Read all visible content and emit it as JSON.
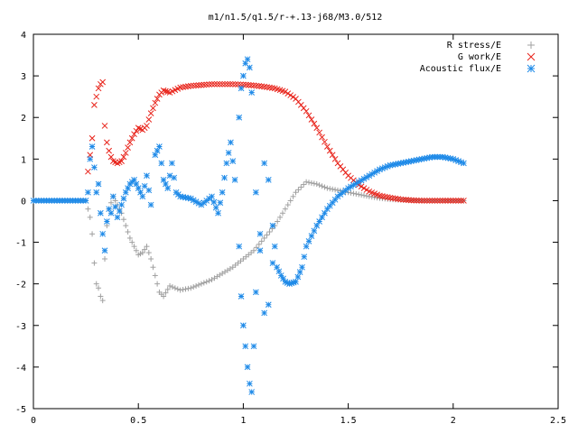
{
  "chart_data": {
    "type": "scatter",
    "title": "m1/n1.5/q1.5/r-+.13-j68/M3.0/512",
    "xlabel": "",
    "ylabel": "",
    "xlim": [
      0,
      2.5
    ],
    "ylim": [
      -5,
      4
    ],
    "x_ticks": [
      "0",
      "0.5",
      "1",
      "1.5",
      "2",
      "2.5"
    ],
    "y_ticks": [
      "-5",
      "-4",
      "-3",
      "-2",
      "-1",
      "0",
      "1",
      "2",
      "3",
      "4"
    ],
    "legend_position": "top-right",
    "grid": false,
    "series": [
      {
        "name": "R stress/E",
        "color": "#a0a0a0",
        "marker": "plus",
        "points": [
          [
            0.0,
            0
          ],
          [
            0.05,
            0
          ],
          [
            0.1,
            0
          ],
          [
            0.15,
            0
          ],
          [
            0.2,
            0
          ],
          [
            0.25,
            0
          ],
          [
            0.27,
            -0.4
          ],
          [
            0.28,
            -0.8
          ],
          [
            0.29,
            -1.5
          ],
          [
            0.3,
            -2.0
          ],
          [
            0.31,
            -2.1
          ],
          [
            0.32,
            -2.3
          ],
          [
            0.33,
            -2.4
          ],
          [
            0.34,
            -1.4
          ],
          [
            0.35,
            -0.6
          ],
          [
            0.36,
            -0.2
          ],
          [
            0.38,
            0.1
          ],
          [
            0.4,
            -0.1
          ],
          [
            0.42,
            -0.3
          ],
          [
            0.44,
            -0.6
          ],
          [
            0.46,
            -0.9
          ],
          [
            0.48,
            -1.1
          ],
          [
            0.5,
            -1.3
          ],
          [
            0.52,
            -1.25
          ],
          [
            0.54,
            -1.1
          ],
          [
            0.56,
            -1.4
          ],
          [
            0.58,
            -1.8
          ],
          [
            0.6,
            -2.2
          ],
          [
            0.62,
            -2.3
          ],
          [
            0.65,
            -2.05
          ],
          [
            0.7,
            -2.15
          ],
          [
            0.75,
            -2.1
          ],
          [
            0.8,
            -2.0
          ],
          [
            0.85,
            -1.9
          ],
          [
            0.9,
            -1.75
          ],
          [
            0.95,
            -1.6
          ],
          [
            1.0,
            -1.4
          ],
          [
            1.05,
            -1.2
          ],
          [
            1.1,
            -0.9
          ],
          [
            1.15,
            -0.6
          ],
          [
            1.2,
            -0.2
          ],
          [
            1.25,
            0.2
          ],
          [
            1.3,
            0.45
          ],
          [
            1.35,
            0.4
          ],
          [
            1.4,
            0.3
          ],
          [
            1.45,
            0.25
          ],
          [
            1.5,
            0.2
          ],
          [
            1.55,
            0.15
          ],
          [
            1.6,
            0.1
          ],
          [
            1.65,
            0.06
          ],
          [
            1.7,
            0.03
          ],
          [
            1.75,
            0.02
          ],
          [
            1.8,
            0.01
          ],
          [
            1.85,
            0.0
          ],
          [
            1.9,
            0.0
          ],
          [
            1.95,
            0.0
          ],
          [
            2.0,
            0.0
          ],
          [
            2.05,
            0.0
          ]
        ]
      },
      {
        "name": "G work/E",
        "color": "#e8231a",
        "marker": "cross",
        "points": [
          [
            0.26,
            0.7
          ],
          [
            0.28,
            1.5
          ],
          [
            0.29,
            2.3
          ],
          [
            0.3,
            2.5
          ],
          [
            0.31,
            2.7
          ],
          [
            0.32,
            2.8
          ],
          [
            0.33,
            2.85
          ],
          [
            0.34,
            1.8
          ],
          [
            0.35,
            1.4
          ],
          [
            0.36,
            1.2
          ],
          [
            0.37,
            1.05
          ],
          [
            0.38,
            0.95
          ],
          [
            0.4,
            0.9
          ],
          [
            0.42,
            0.95
          ],
          [
            0.44,
            1.15
          ],
          [
            0.46,
            1.4
          ],
          [
            0.48,
            1.6
          ],
          [
            0.5,
            1.75
          ],
          [
            0.52,
            1.7
          ],
          [
            0.54,
            1.8
          ],
          [
            0.56,
            2.1
          ],
          [
            0.58,
            2.35
          ],
          [
            0.6,
            2.55
          ],
          [
            0.62,
            2.65
          ],
          [
            0.65,
            2.6
          ],
          [
            0.7,
            2.72
          ],
          [
            0.75,
            2.76
          ],
          [
            0.8,
            2.78
          ],
          [
            0.85,
            2.8
          ],
          [
            0.9,
            2.8
          ],
          [
            0.95,
            2.8
          ],
          [
            1.0,
            2.79
          ],
          [
            1.05,
            2.77
          ],
          [
            1.1,
            2.74
          ],
          [
            1.15,
            2.7
          ],
          [
            1.2,
            2.62
          ],
          [
            1.25,
            2.45
          ],
          [
            1.3,
            2.15
          ],
          [
            1.35,
            1.75
          ],
          [
            1.4,
            1.3
          ],
          [
            1.45,
            0.9
          ],
          [
            1.5,
            0.6
          ],
          [
            1.55,
            0.38
          ],
          [
            1.6,
            0.22
          ],
          [
            1.65,
            0.12
          ],
          [
            1.7,
            0.07
          ],
          [
            1.75,
            0.03
          ],
          [
            1.8,
            0.01
          ],
          [
            1.85,
            0.0
          ],
          [
            1.9,
            0.0
          ],
          [
            1.95,
            0.0
          ],
          [
            2.0,
            0.0
          ],
          [
            2.05,
            0.0
          ]
        ]
      },
      {
        "name": "Acoustic flux/E",
        "color": "#1e8ae8",
        "marker": "star",
        "points": [
          [
            0.0,
            0
          ],
          [
            0.05,
            0
          ],
          [
            0.1,
            0
          ],
          [
            0.15,
            0
          ],
          [
            0.2,
            0
          ],
          [
            0.25,
            0
          ],
          [
            0.26,
            0.2
          ],
          [
            0.27,
            1.0
          ],
          [
            0.28,
            1.3
          ],
          [
            0.29,
            0.8
          ],
          [
            0.3,
            0.2
          ],
          [
            0.31,
            0.4
          ],
          [
            0.32,
            -0.3
          ],
          [
            0.33,
            -0.8
          ],
          [
            0.34,
            -1.2
          ],
          [
            0.35,
            -0.5
          ],
          [
            0.36,
            -0.2
          ],
          [
            0.37,
            -0.3
          ],
          [
            0.38,
            0.1
          ],
          [
            0.4,
            -0.4
          ],
          [
            0.42,
            -0.1
          ],
          [
            0.44,
            0.2
          ],
          [
            0.46,
            0.4
          ],
          [
            0.48,
            0.5
          ],
          [
            0.5,
            0.3
          ],
          [
            0.52,
            0.1
          ],
          [
            0.54,
            0.6
          ],
          [
            0.56,
            -0.1
          ],
          [
            0.58,
            1.1
          ],
          [
            0.6,
            1.3
          ],
          [
            0.62,
            0.5
          ],
          [
            0.64,
            0.3
          ],
          [
            0.66,
            0.9
          ],
          [
            0.68,
            0.2
          ],
          [
            0.7,
            0.1
          ],
          [
            0.75,
            0.05
          ],
          [
            0.8,
            -0.1
          ],
          [
            0.85,
            0.1
          ],
          [
            0.88,
            -0.3
          ],
          [
            0.9,
            0.2
          ],
          [
            0.92,
            0.9
          ],
          [
            0.94,
            1.4
          ],
          [
            0.96,
            0.5
          ],
          [
            0.98,
            -1.1
          ],
          [
            0.99,
            -2.3
          ],
          [
            1.0,
            -3.0
          ],
          [
            1.01,
            -3.5
          ],
          [
            1.02,
            -4.0
          ],
          [
            1.03,
            -4.4
          ],
          [
            1.04,
            -4.6
          ],
          [
            1.05,
            -3.5
          ],
          [
            1.06,
            -2.2
          ],
          [
            1.08,
            -1.2
          ],
          [
            1.1,
            -2.7
          ],
          [
            1.12,
            -2.5
          ],
          [
            1.14,
            -1.5
          ],
          [
            1.16,
            -1.6
          ],
          [
            1.18,
            -1.8
          ],
          [
            1.2,
            -1.95
          ],
          [
            1.22,
            -2.0
          ],
          [
            1.25,
            -1.95
          ],
          [
            1.28,
            -1.6
          ],
          [
            1.3,
            -1.1
          ],
          [
            1.35,
            -0.6
          ],
          [
            1.4,
            -0.2
          ],
          [
            1.45,
            0.1
          ],
          [
            1.5,
            0.3
          ],
          [
            1.55,
            0.45
          ],
          [
            1.6,
            0.6
          ],
          [
            1.65,
            0.75
          ],
          [
            1.7,
            0.85
          ],
          [
            1.75,
            0.9
          ],
          [
            1.8,
            0.95
          ],
          [
            1.85,
            1.0
          ],
          [
            1.9,
            1.05
          ],
          [
            1.95,
            1.05
          ],
          [
            2.0,
            1.0
          ],
          [
            2.05,
            0.9
          ],
          [
            0.98,
            2.0
          ],
          [
            0.99,
            2.7
          ],
          [
            1.0,
            3.0
          ],
          [
            1.01,
            3.3
          ],
          [
            1.02,
            3.4
          ],
          [
            1.03,
            3.2
          ],
          [
            1.04,
            2.6
          ],
          [
            1.06,
            0.2
          ],
          [
            1.08,
            -0.8
          ],
          [
            1.1,
            0.9
          ],
          [
            1.12,
            0.5
          ],
          [
            1.14,
            -0.6
          ]
        ]
      }
    ]
  }
}
